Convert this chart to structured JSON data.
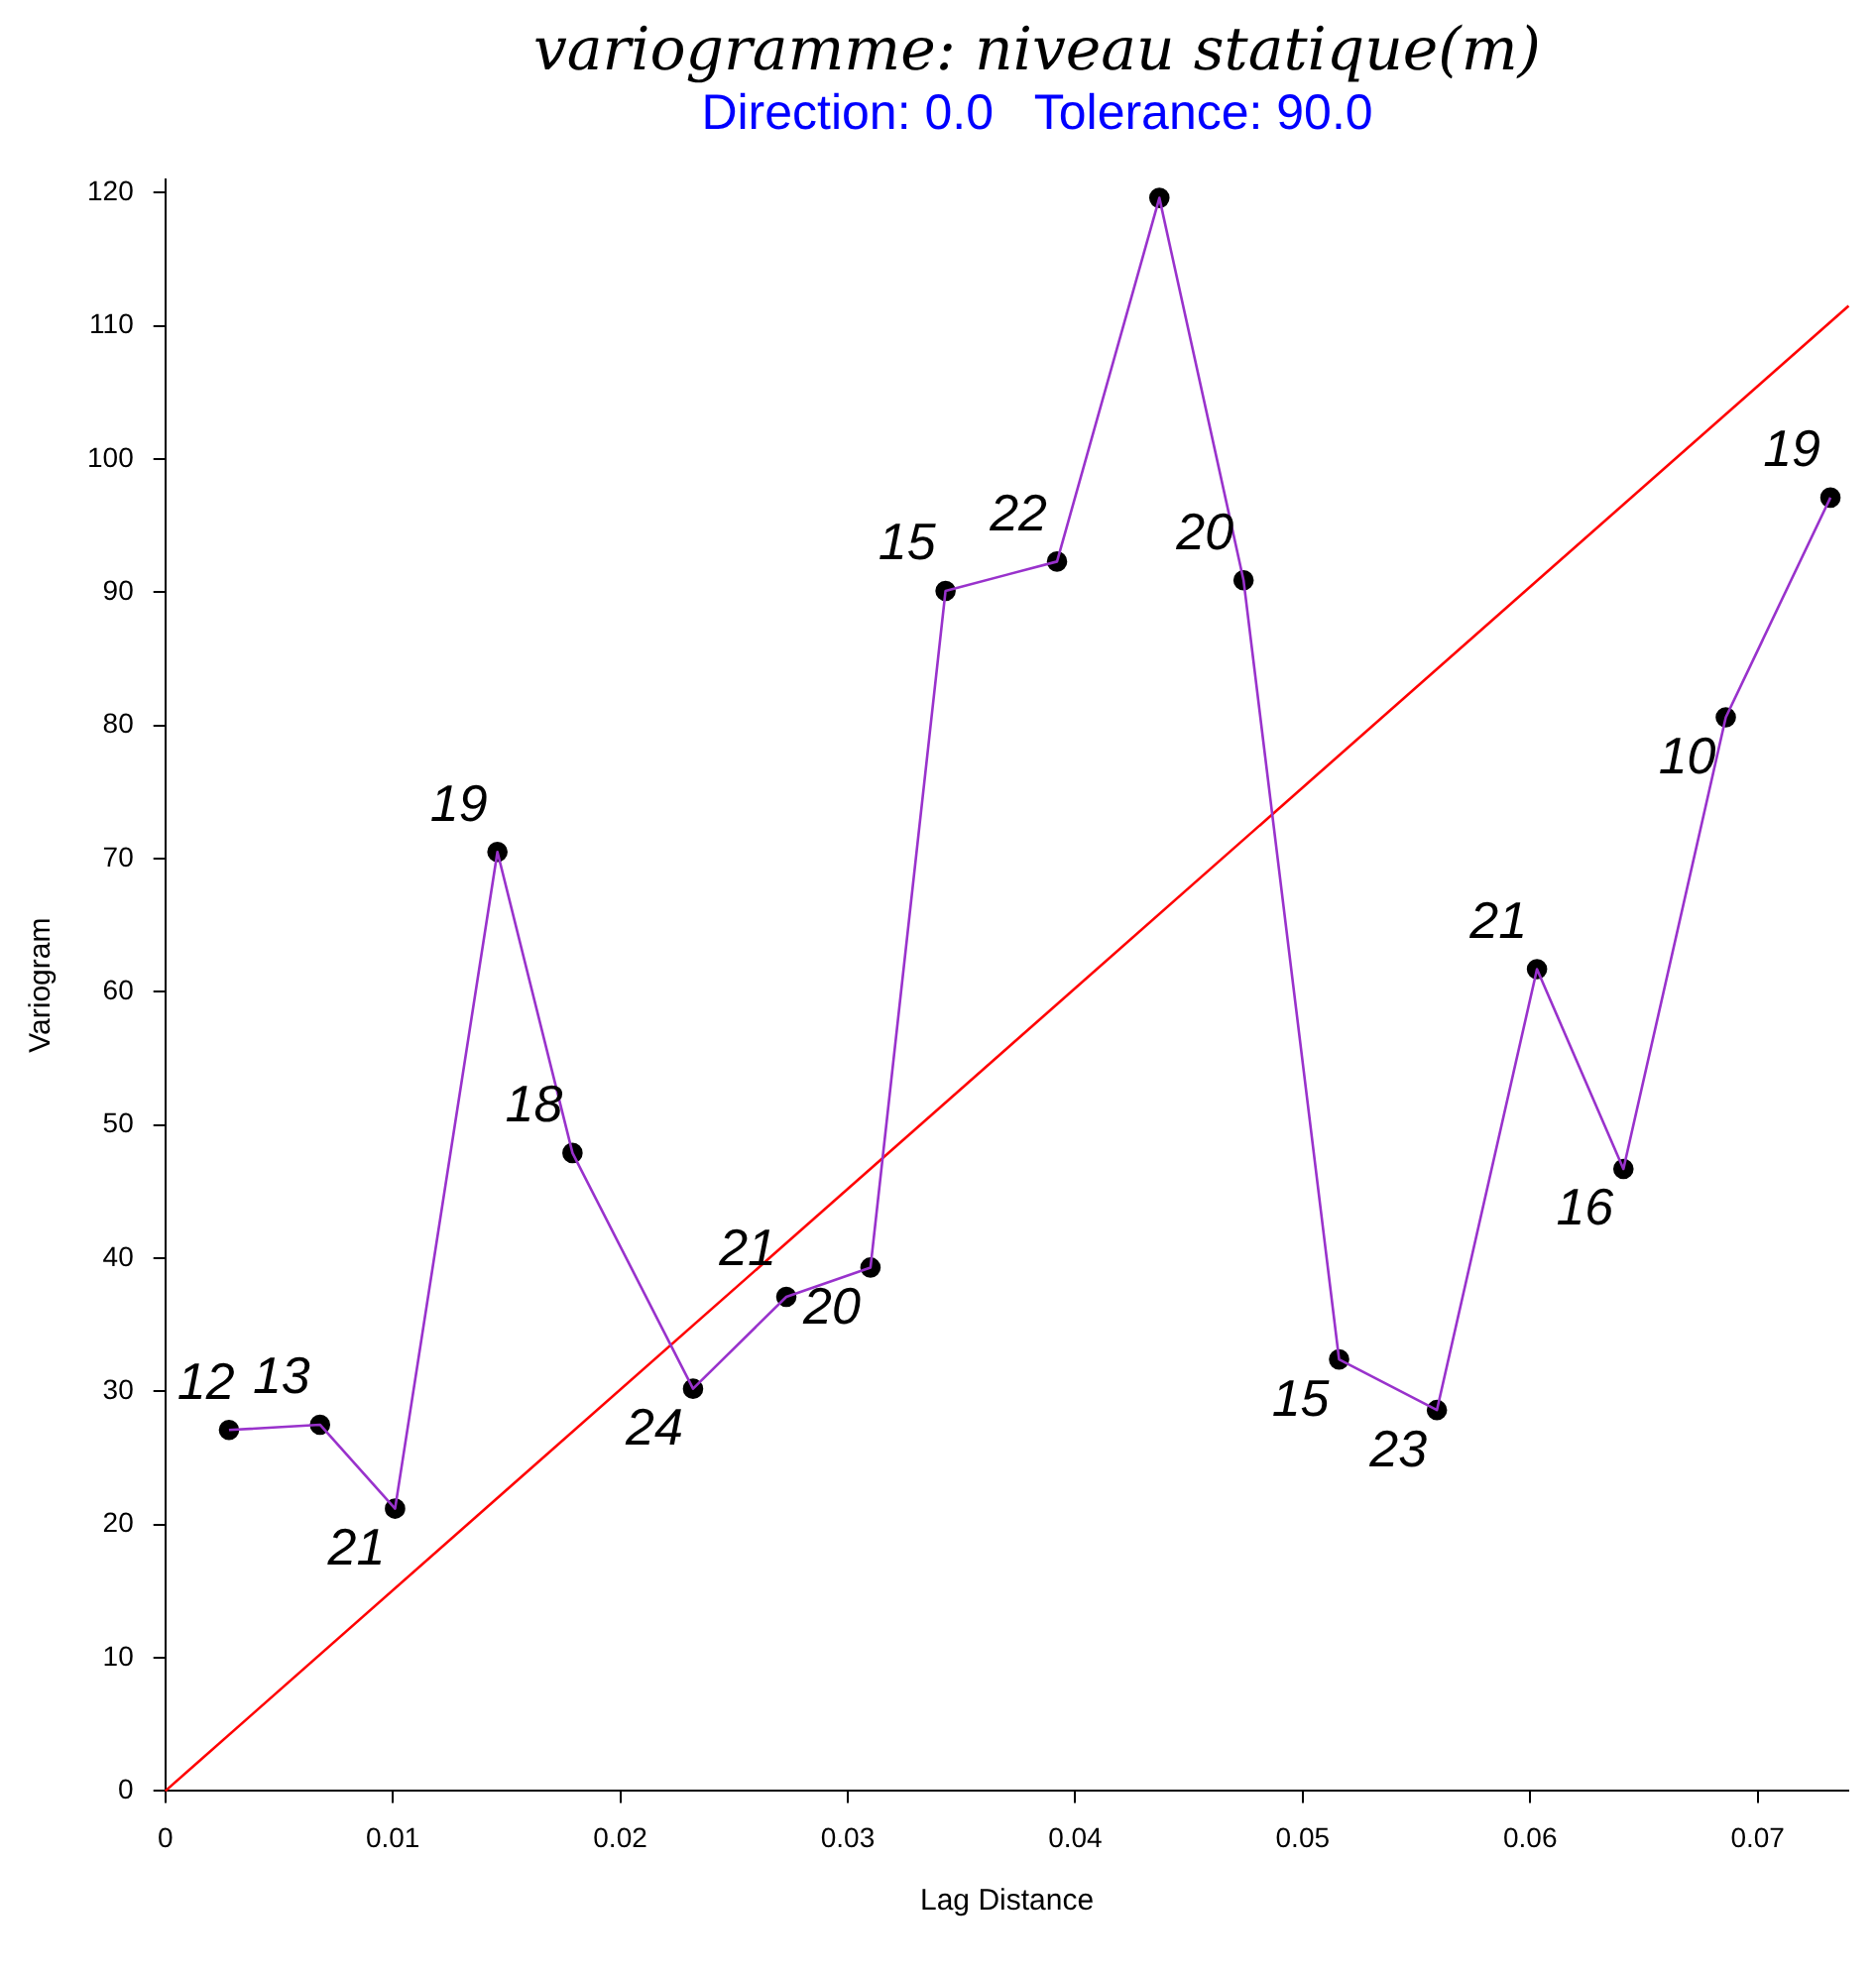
{
  "chart_data": {
    "type": "line",
    "title": "variogramme: niveau statique(m)",
    "subtitle": "Direction: 0.0   Tolerance: 90.0",
    "xlabel": "Lag Distance",
    "ylabel": "Variogram",
    "xlim": [
      0,
      0.074
    ],
    "ylim": [
      0,
      121
    ],
    "xticks": [
      0,
      0.01,
      0.02,
      0.03,
      0.04,
      0.05,
      0.06,
      0.07
    ],
    "yticks": [
      0,
      10,
      20,
      30,
      40,
      50,
      60,
      70,
      80,
      90,
      100,
      110,
      120
    ],
    "grid": false,
    "legend": false,
    "series": [
      {
        "type": "scatter",
        "color": "#000000",
        "marker": "circle",
        "x": [
          0.0028,
          0.0068,
          0.0101,
          0.0146,
          0.0179,
          0.0232,
          0.0273,
          0.031,
          0.0343,
          0.0392,
          0.0437,
          0.0474,
          0.0516,
          0.0559,
          0.0603,
          0.0641,
          0.0686,
          0.0732
        ],
        "values": [
          27.1,
          27.5,
          21.2,
          70.5,
          47.9,
          30.2,
          37.1,
          39.3,
          90.1,
          92.3,
          119.6,
          90.9,
          32.4,
          28.6,
          61.7,
          46.7,
          80.6,
          97.1
        ]
      },
      {
        "color": "#9932cc",
        "marker": "none",
        "x": [
          0.0028,
          0.0068,
          0.0101,
          0.0146,
          0.0179,
          0.0232,
          0.0273,
          0.031,
          0.0343,
          0.0392,
          0.0437,
          0.0474,
          0.0516,
          0.0559,
          0.0603,
          0.0641,
          0.0686,
          0.0732
        ],
        "values": [
          27.1,
          27.5,
          21.2,
          70.5,
          47.9,
          30.2,
          37.1,
          39.3,
          90.1,
          92.3,
          119.6,
          90.9,
          32.4,
          28.6,
          61.7,
          46.7,
          80.6,
          97.1
        ]
      },
      {
        "color": "#ff0000",
        "marker": "none",
        "x": [
          0,
          0.074
        ],
        "values": [
          0,
          111.5
        ]
      }
    ],
    "annotations": [
      {
        "text": "12",
        "x": 0.0028,
        "y": 27.1
      },
      {
        "text": "13",
        "x": 0.0068,
        "y": 27.5
      },
      {
        "text": "21",
        "x": 0.0101,
        "y": 21.2
      },
      {
        "text": "19",
        "x": 0.0146,
        "y": 70.5
      },
      {
        "text": "18",
        "x": 0.0179,
        "y": 47.9
      },
      {
        "text": "24",
        "x": 0.0232,
        "y": 30.2
      },
      {
        "text": "21",
        "x": 0.0273,
        "y": 37.1
      },
      {
        "text": "20",
        "x": 0.031,
        "y": 39.3
      },
      {
        "text": "15",
        "x": 0.0343,
        "y": 90.1
      },
      {
        "text": "22",
        "x": 0.0392,
        "y": 92.3
      },
      {
        "text": "20",
        "x": 0.0474,
        "y": 90.9
      },
      {
        "text": "15",
        "x": 0.0516,
        "y": 32.4
      },
      {
        "text": "23",
        "x": 0.0559,
        "y": 28.6
      },
      {
        "text": "21",
        "x": 0.0603,
        "y": 61.7
      },
      {
        "text": "16",
        "x": 0.0641,
        "y": 46.7
      },
      {
        "text": "10",
        "x": 0.0686,
        "y": 80.6
      },
      {
        "text": "19",
        "x": 0.0732,
        "y": 97.1
      }
    ]
  }
}
